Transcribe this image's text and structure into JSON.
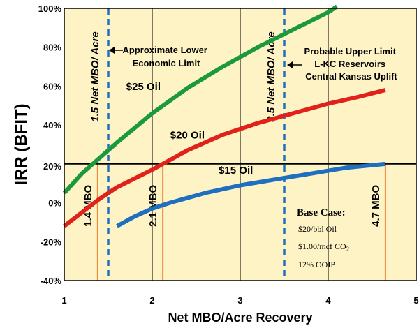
{
  "chart_data": {
    "type": "line",
    "xlabel": "Net MBO/Acre Recovery",
    "ylabel": "IRR (BFIT)",
    "xlim": [
      1,
      5
    ],
    "ylim": [
      -40,
      100
    ],
    "x_ticks": [
      "1",
      "2",
      "3",
      "4",
      "5"
    ],
    "y_ticks": [
      {
        "value": -40,
        "label": "-40%"
      },
      {
        "value": -20,
        "label": "-20%"
      },
      {
        "value": 0,
        "label": "0%"
      },
      {
        "value": 20,
        "label": "20%"
      },
      {
        "value": 40,
        "label": "40%"
      },
      {
        "value": 60,
        "label": "60%"
      },
      {
        "value": 80,
        "label": "80%"
      },
      {
        "value": 100,
        "label": "100%"
      }
    ],
    "series": [
      {
        "name": "$25 Oil",
        "color": "#1a9a3c",
        "x": [
          1.0,
          1.2,
          1.4,
          1.6,
          2.0,
          2.4,
          2.8,
          3.2,
          3.6,
          4.0,
          4.1
        ],
        "y": [
          5,
          15,
          23,
          31,
          46,
          59,
          70,
          80,
          89,
          98,
          101
        ]
      },
      {
        "name": "$20 Oil",
        "color": "#e0221b",
        "x": [
          1.0,
          1.2,
          1.4,
          1.6,
          2.0,
          2.4,
          2.8,
          3.2,
          3.6,
          4.0,
          4.3,
          4.65
        ],
        "y": [
          -12,
          -5,
          2,
          8,
          17,
          27,
          35,
          41,
          46,
          51,
          54,
          58
        ]
      },
      {
        "name": "$15 Oil",
        "color": "#1e6fc0",
        "x": [
          1.6,
          1.8,
          2.0,
          2.2,
          2.6,
          3.0,
          3.4,
          3.8,
          4.2,
          4.65
        ],
        "y": [
          -12,
          -7,
          -3,
          0,
          5,
          9,
          12,
          15,
          18,
          20
        ]
      }
    ],
    "series_labels": [
      {
        "text": "$25 Oil",
        "x": 1.9,
        "y": 58
      },
      {
        "text": "$20 Oil",
        "x": 2.4,
        "y": 33
      },
      {
        "text": "$15 Oil",
        "x": 2.95,
        "y": 15
      }
    ],
    "threshold_line": {
      "y": 20,
      "label": "20%"
    },
    "vertical_limits": [
      {
        "x": 1.5,
        "label": "1.5 Net MBO/ Acre",
        "color": "#1e6fc0"
      },
      {
        "x": 3.5,
        "label": "3.5 Net MBO/ Acre",
        "color": "#1e6fc0"
      }
    ],
    "drop_lines": [
      {
        "x": 1.38,
        "y": 20,
        "label": "1.4 MBO"
      },
      {
        "x": 2.12,
        "y": 20,
        "label": "2.1 MBO"
      },
      {
        "x": 4.65,
        "y": 20,
        "label": "4.7 MBO"
      }
    ],
    "annotations": {
      "lower_limit": [
        "Approximate Lower",
        "Economic Limit"
      ],
      "upper_limit": [
        "Probable Upper Limit",
        "L-KC Reservoirs",
        "Central Kansas Uplift"
      ],
      "base_case": {
        "title": "Base Case:",
        "lines": [
          "$20/bbl Oil",
          "$1.00/mcf CO",
          "12% OOIP"
        ],
        "subscript": "2"
      }
    },
    "background_color": "#fdf3c4"
  }
}
